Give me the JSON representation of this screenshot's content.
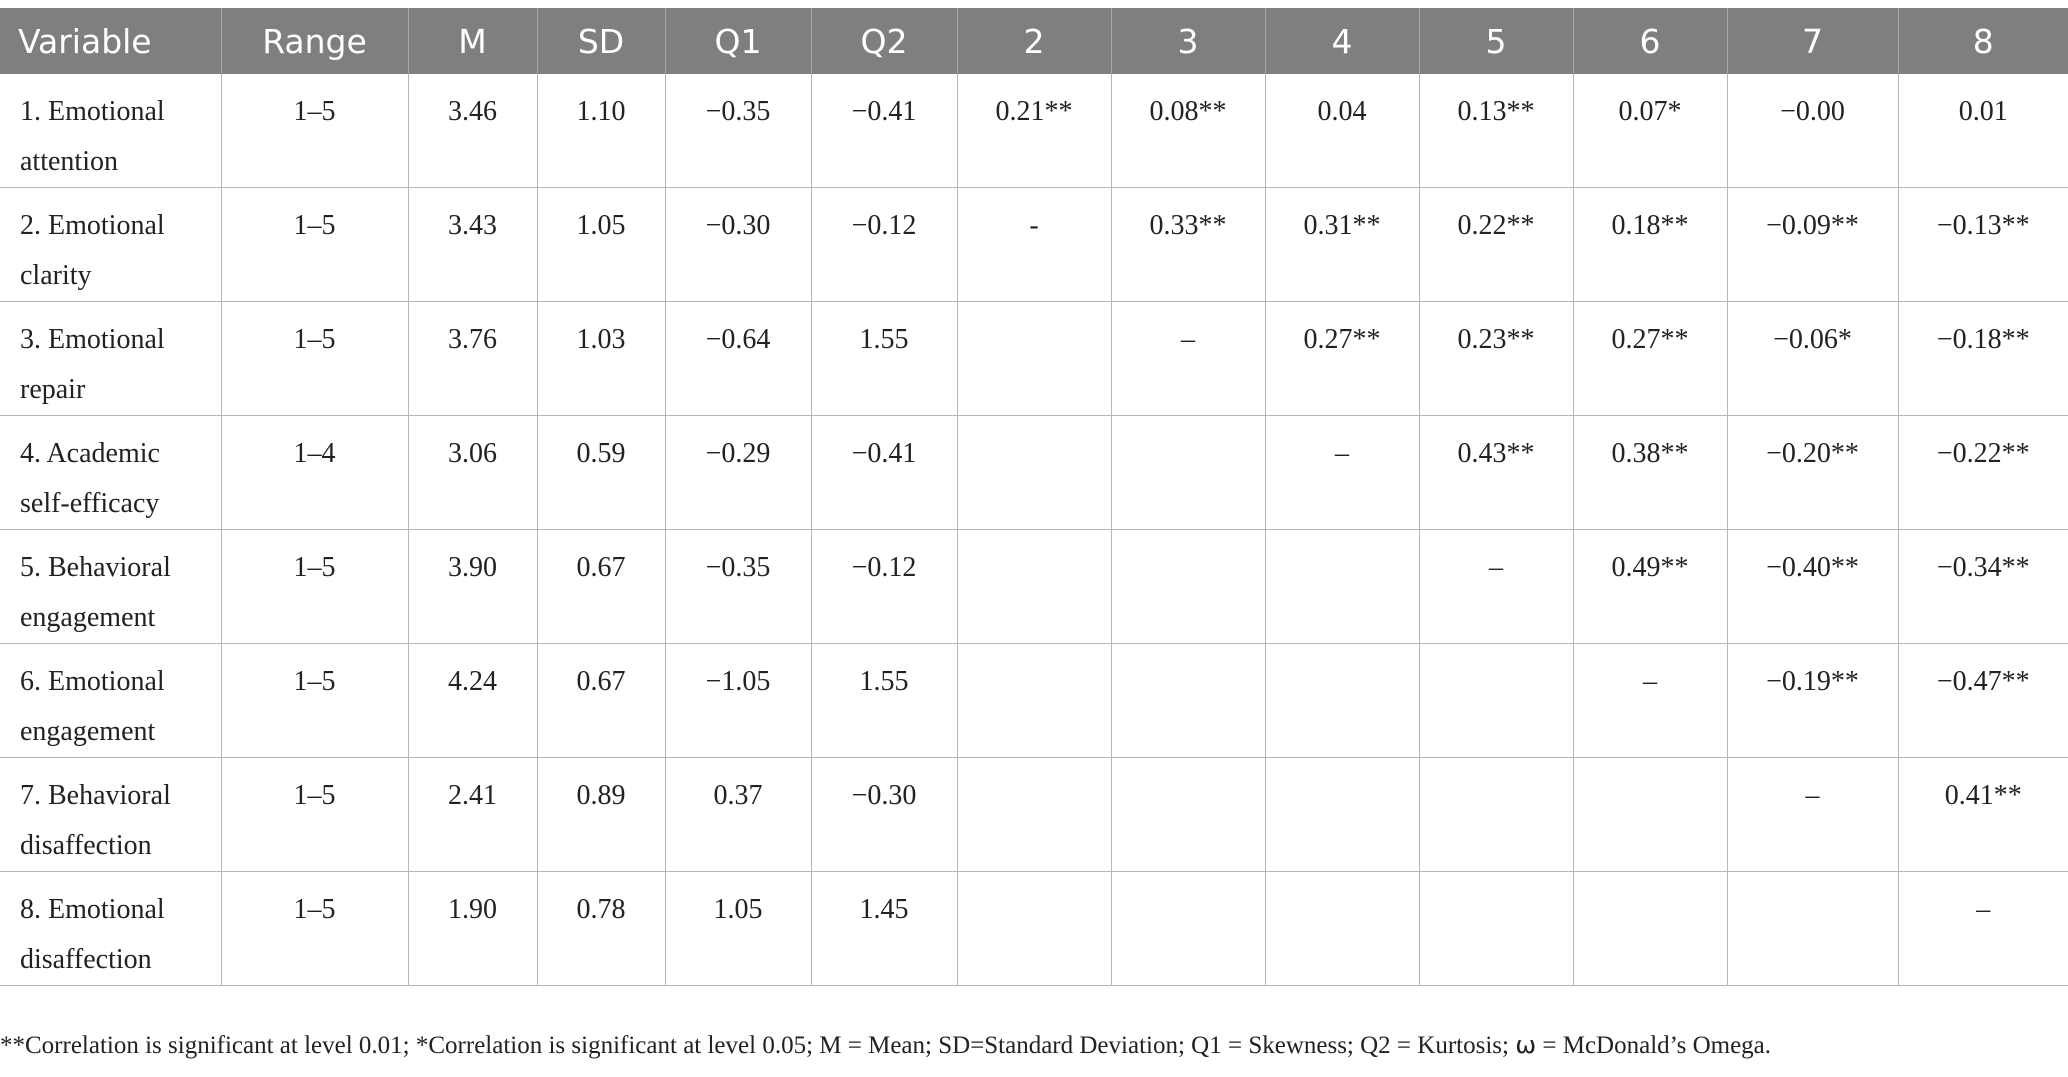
{
  "table": {
    "headers": [
      "Variable",
      "Range",
      "M",
      "SD",
      "Q1",
      "Q2",
      "2",
      "3",
      "4",
      "5",
      "6",
      "7",
      "8"
    ],
    "rows": [
      {
        "variable": "1. Emotional attention",
        "range": "1–5",
        "m": "3.46",
        "sd": "1.10",
        "q1": "−0.35",
        "q2": "−0.41",
        "c2": "0.21**",
        "c3": "0.08**",
        "c4": "0.04",
        "c5": "0.13**",
        "c6": "0.07*",
        "c7": "−0.00",
        "c8": "0.01"
      },
      {
        "variable": "2. Emotional clarity",
        "range": "1–5",
        "m": "3.43",
        "sd": "1.05",
        "q1": "−0.30",
        "q2": "−0.12",
        "c2": "-",
        "c3": "0.33**",
        "c4": "0.31**",
        "c5": "0.22**",
        "c6": "0.18**",
        "c7": "−0.09**",
        "c8": "−0.13**"
      },
      {
        "variable": "3. Emotional repair",
        "range": "1–5",
        "m": "3.76",
        "sd": "1.03",
        "q1": "−0.64",
        "q2": "1.55",
        "c2": "",
        "c3": "–",
        "c4": "0.27**",
        "c5": "0.23**",
        "c6": "0.27**",
        "c7": "−0.06*",
        "c8": "−0.18**"
      },
      {
        "variable": "4. Academic self-efficacy",
        "range": "1–4",
        "m": "3.06",
        "sd": "0.59",
        "q1": "−0.29",
        "q2": "−0.41",
        "c2": "",
        "c3": "",
        "c4": "–",
        "c5": "0.43**",
        "c6": "0.38**",
        "c7": "−0.20**",
        "c8": "−0.22**"
      },
      {
        "variable": "5. Behavioral engagement",
        "range": "1–5",
        "m": "3.90",
        "sd": "0.67",
        "q1": "−0.35",
        "q2": "−0.12",
        "c2": "",
        "c3": "",
        "c4": "",
        "c5": "–",
        "c6": "0.49**",
        "c7": "−0.40**",
        "c8": "−0.34**"
      },
      {
        "variable": "6. Emotional engagement",
        "range": "1–5",
        "m": "4.24",
        "sd": "0.67",
        "q1": "−1.05",
        "q2": "1.55",
        "c2": "",
        "c3": "",
        "c4": "",
        "c5": "",
        "c6": "–",
        "c7": "−0.19**",
        "c8": "−0.47**"
      },
      {
        "variable": "7. Behavioral disaffection",
        "range": "1–5",
        "m": "2.41",
        "sd": "0.89",
        "q1": "0.37",
        "q2": "−0.30",
        "c2": "",
        "c3": "",
        "c4": "",
        "c5": "",
        "c6": "",
        "c7": "–",
        "c8": "0.41**"
      },
      {
        "variable": "8. Emotional disaffection",
        "range": "1–5",
        "m": "1.90",
        "sd": "0.78",
        "q1": "1.05",
        "q2": "1.45",
        "c2": "",
        "c3": "",
        "c4": "",
        "c5": "",
        "c6": "",
        "c7": "",
        "c8": "–"
      }
    ]
  },
  "footnote": "**Correlation is significant at level 0.01; *Correlation is significant at level 0.05; M = Mean; SD=Standard Deviation; Q1 = Skewness; Q2 = Kurtosis; ⍵ = McDonald’s Omega.",
  "colors": {
    "header_bg": "#7f7f7f",
    "header_text": "#ffffff",
    "grid_line": "#b5b5b5"
  }
}
